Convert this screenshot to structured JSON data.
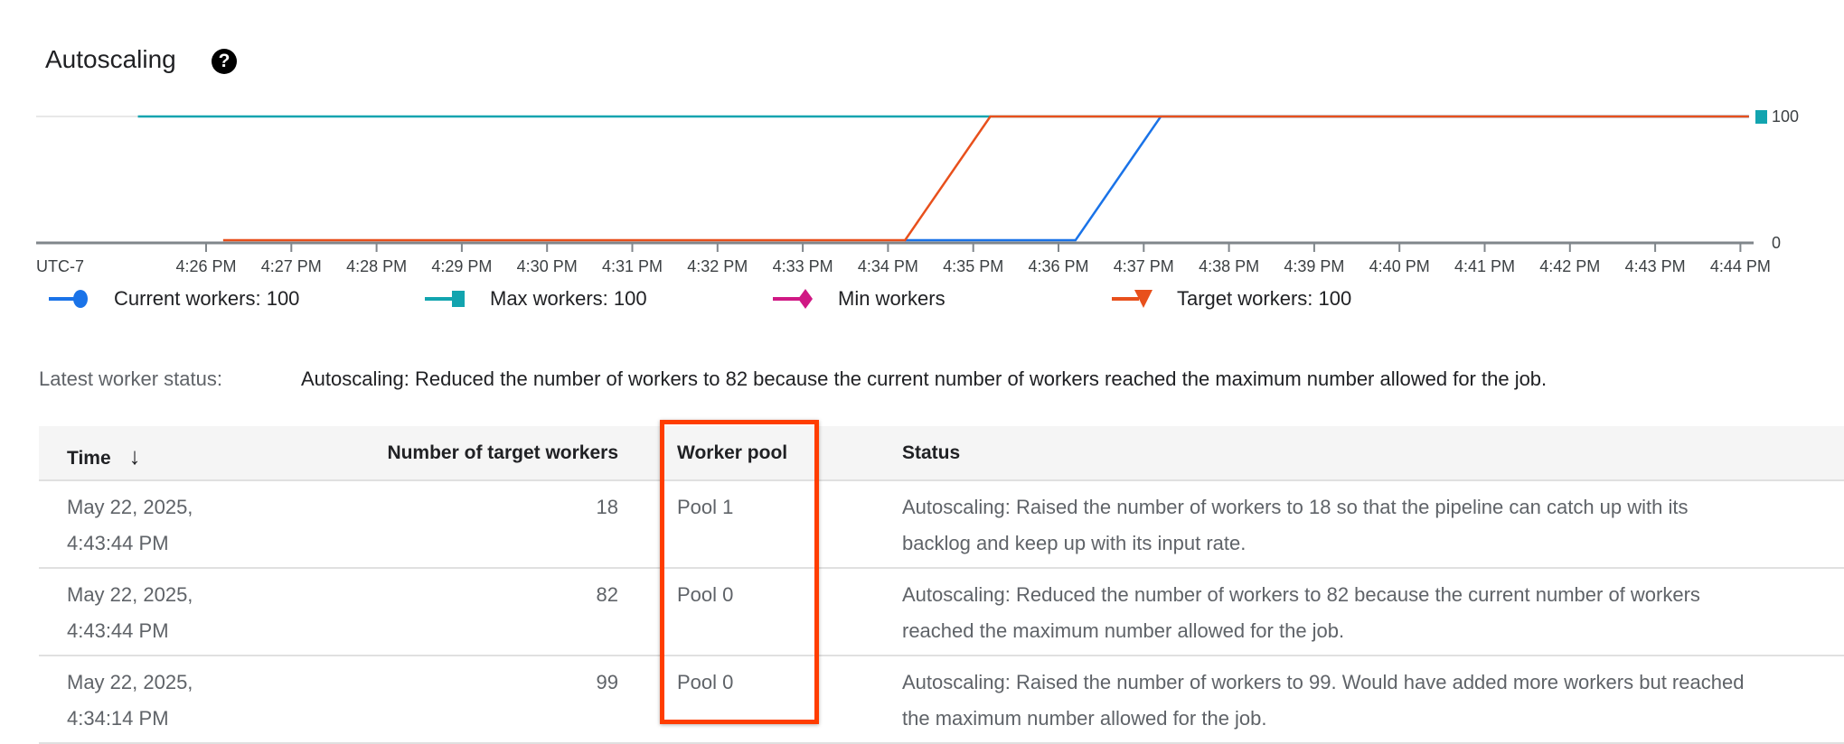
{
  "title": "Autoscaling",
  "help_icon": "help-circle-icon",
  "chart_data": {
    "type": "line",
    "timezone_label": "UTC-7",
    "x_ticks": [
      "4:26 PM",
      "4:27 PM",
      "4:28 PM",
      "4:29 PM",
      "4:30 PM",
      "4:31 PM",
      "4:32 PM",
      "4:33 PM",
      "4:34 PM",
      "4:35 PM",
      "4:36 PM",
      "4:37 PM",
      "4:38 PM",
      "4:39 PM",
      "4:40 PM",
      "4:41 PM",
      "4:42 PM",
      "4:43 PM",
      "4:44 PM"
    ],
    "y_ticks": [
      "0",
      "100"
    ],
    "ylim": [
      0,
      100
    ],
    "series": [
      {
        "name": "Current workers",
        "legend_value": "100",
        "color": "#1a73e8",
        "marker": "circle",
        "points": [
          [
            "4:34:12 PM",
            0
          ],
          [
            "4:36:12 PM",
            0
          ],
          [
            "4:37:12 PM",
            100
          ],
          [
            "4:44:06 PM",
            100
          ]
        ]
      },
      {
        "name": "Max workers",
        "legend_value": "100",
        "color": "#12a4af",
        "marker": "square",
        "points": [
          [
            "4:25:12 PM",
            100
          ],
          [
            "4:44:06 PM",
            100
          ]
        ]
      },
      {
        "name": "Min workers",
        "legend_value": "",
        "color": "#d01884",
        "marker": "diamond",
        "points": []
      },
      {
        "name": "Target workers",
        "legend_value": "100",
        "color": "#e8501c",
        "marker": "triangle-down",
        "points": [
          [
            "4:26:12 PM",
            0
          ],
          [
            "4:34:12 PM",
            0
          ],
          [
            "4:35:12 PM",
            100
          ],
          [
            "4:44:06 PM",
            100
          ]
        ]
      }
    ]
  },
  "legend": [
    {
      "label": "Current workers:  100"
    },
    {
      "label": "Max workers:  100"
    },
    {
      "label": "Min workers"
    },
    {
      "label": "Target workers:  100"
    }
  ],
  "status": {
    "label": "Latest worker status:",
    "value": "Autoscaling: Reduced the number of workers to 82 because the current number of workers reached the maximum number allowed for the job."
  },
  "table": {
    "headers": {
      "time": "Time",
      "sort_icon": "arrow-down-icon",
      "num": "Number of target workers",
      "pool": "Worker pool",
      "status": "Status"
    },
    "rows": [
      {
        "date": "May 22, 2025,",
        "time": "4:43:44 PM",
        "num": "18",
        "pool": "Pool 1",
        "status": "Autoscaling: Raised the number of workers to 18 so that the pipeline can catch up with its backlog and keep up with its input rate."
      },
      {
        "date": "May 22, 2025,",
        "time": "4:43:44 PM",
        "num": "82",
        "pool": "Pool 0",
        "status": "Autoscaling: Reduced the number of workers to 82 because the current number of workers reached the maximum number allowed for the job."
      },
      {
        "date": "May 22, 2025,",
        "time": "4:34:14 PM",
        "num": "99",
        "pool": "Pool 0",
        "status": "Autoscaling: Raised the number of workers to 99. Would have added more workers but reached the maximum number allowed for the job."
      }
    ]
  },
  "highlight_color": "#ff3d00"
}
